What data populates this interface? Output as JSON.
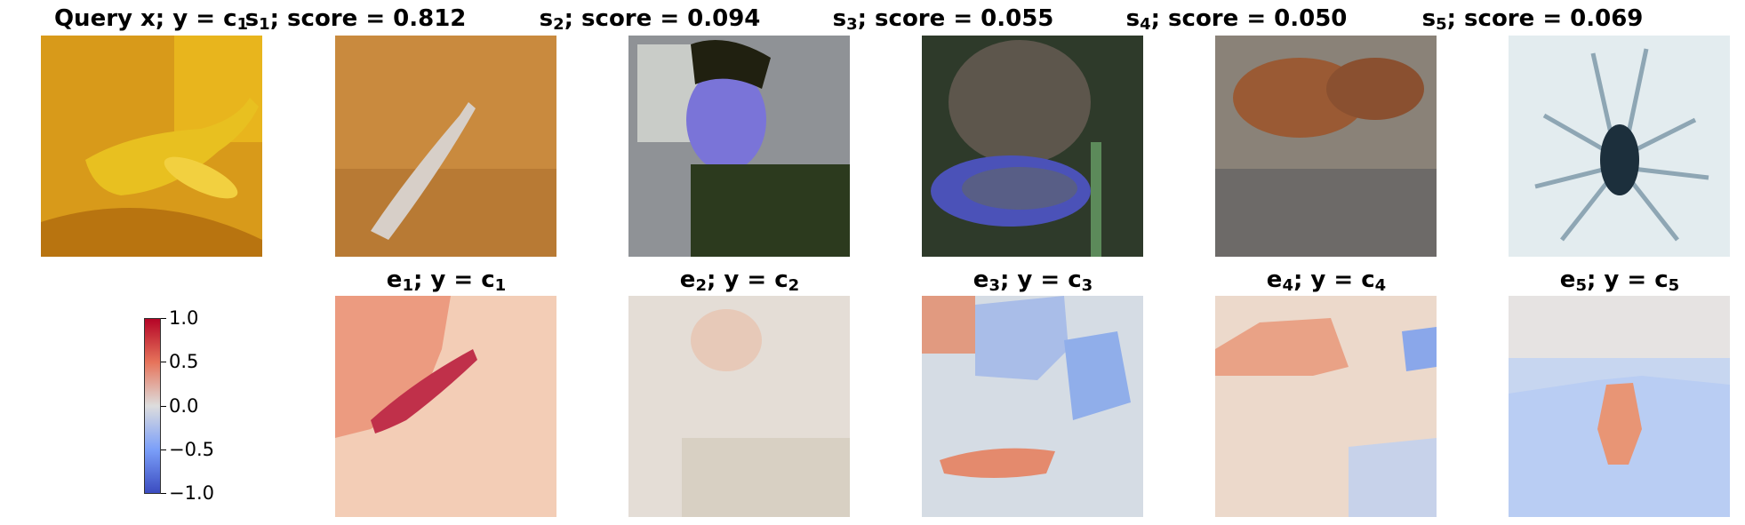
{
  "top_row": [
    {
      "prefix": "Query x; y = c",
      "sub": "1",
      "suffix": ""
    },
    {
      "prefix": "s",
      "sub": "1",
      "suffix": "; score = 0.812"
    },
    {
      "prefix": "s",
      "sub": "2",
      "suffix": "; score = 0.094"
    },
    {
      "prefix": "s",
      "sub": "3",
      "suffix": "; score = 0.055"
    },
    {
      "prefix": "s",
      "sub": "4",
      "suffix": "; score = 0.050"
    },
    {
      "prefix": "s",
      "sub": "5",
      "suffix": "; score = 0.069"
    }
  ],
  "bottom_row": [
    {
      "prefix": "e",
      "sub": "1",
      "mid": "; y = c",
      "sub2": "1"
    },
    {
      "prefix": "e",
      "sub": "2",
      "mid": "; y = c",
      "sub2": "2"
    },
    {
      "prefix": "e",
      "sub": "3",
      "mid": "; y = c",
      "sub2": "3"
    },
    {
      "prefix": "e",
      "sub": "4",
      "mid": "; y = c",
      "sub2": "4"
    },
    {
      "prefix": "e",
      "sub": "5",
      "mid": "; y = c",
      "sub2": "5"
    }
  ],
  "colorbar": {
    "ticks": [
      "1.0",
      "0.5",
      "0.0",
      "−0.5",
      "−1.0"
    ],
    "colors": [
      "#b40426",
      "#e6745b",
      "#dddddd",
      "#7b9ff9",
      "#3b4cc0"
    ]
  }
}
